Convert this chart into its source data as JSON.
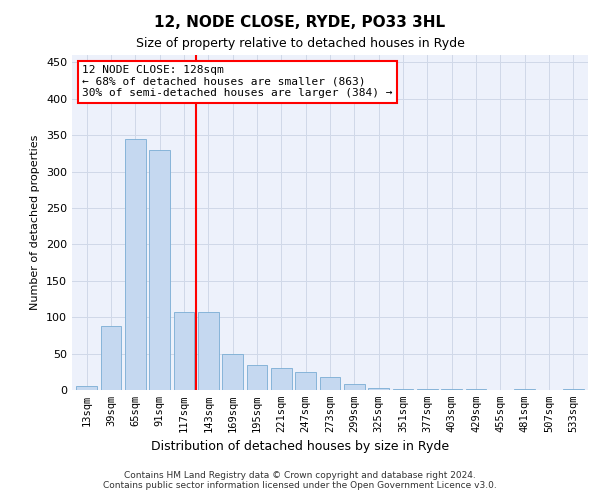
{
  "title": "12, NODE CLOSE, RYDE, PO33 3HL",
  "subtitle": "Size of property relative to detached houses in Ryde",
  "xlabel": "Distribution of detached houses by size in Ryde",
  "ylabel": "Number of detached properties",
  "categories": [
    "13sqm",
    "39sqm",
    "65sqm",
    "91sqm",
    "117sqm",
    "143sqm",
    "169sqm",
    "195sqm",
    "221sqm",
    "247sqm",
    "273sqm",
    "299sqm",
    "325sqm",
    "351sqm",
    "377sqm",
    "403sqm",
    "429sqm",
    "455sqm",
    "481sqm",
    "507sqm",
    "533sqm"
  ],
  "values": [
    5,
    88,
    345,
    330,
    107,
    107,
    50,
    35,
    30,
    25,
    18,
    8,
    3,
    2,
    2,
    1,
    1,
    0,
    1,
    0,
    1
  ],
  "bar_color": "#c5d8f0",
  "bar_edge_color": "#7aadd4",
  "grid_color": "#d0d8e8",
  "background_color": "#edf1fb",
  "vline_x": 4.5,
  "vline_color": "red",
  "annotation_text": "12 NODE CLOSE: 128sqm\n← 68% of detached houses are smaller (863)\n30% of semi-detached houses are larger (384) →",
  "annotation_box_color": "white",
  "annotation_box_edge": "red",
  "footer": "Contains HM Land Registry data © Crown copyright and database right 2024.\nContains public sector information licensed under the Open Government Licence v3.0.",
  "ylim": [
    0,
    460
  ],
  "yticks": [
    0,
    50,
    100,
    150,
    200,
    250,
    300,
    350,
    400,
    450
  ],
  "title_fontsize": 11,
  "subtitle_fontsize": 9,
  "ylabel_fontsize": 8,
  "xlabel_fontsize": 9
}
